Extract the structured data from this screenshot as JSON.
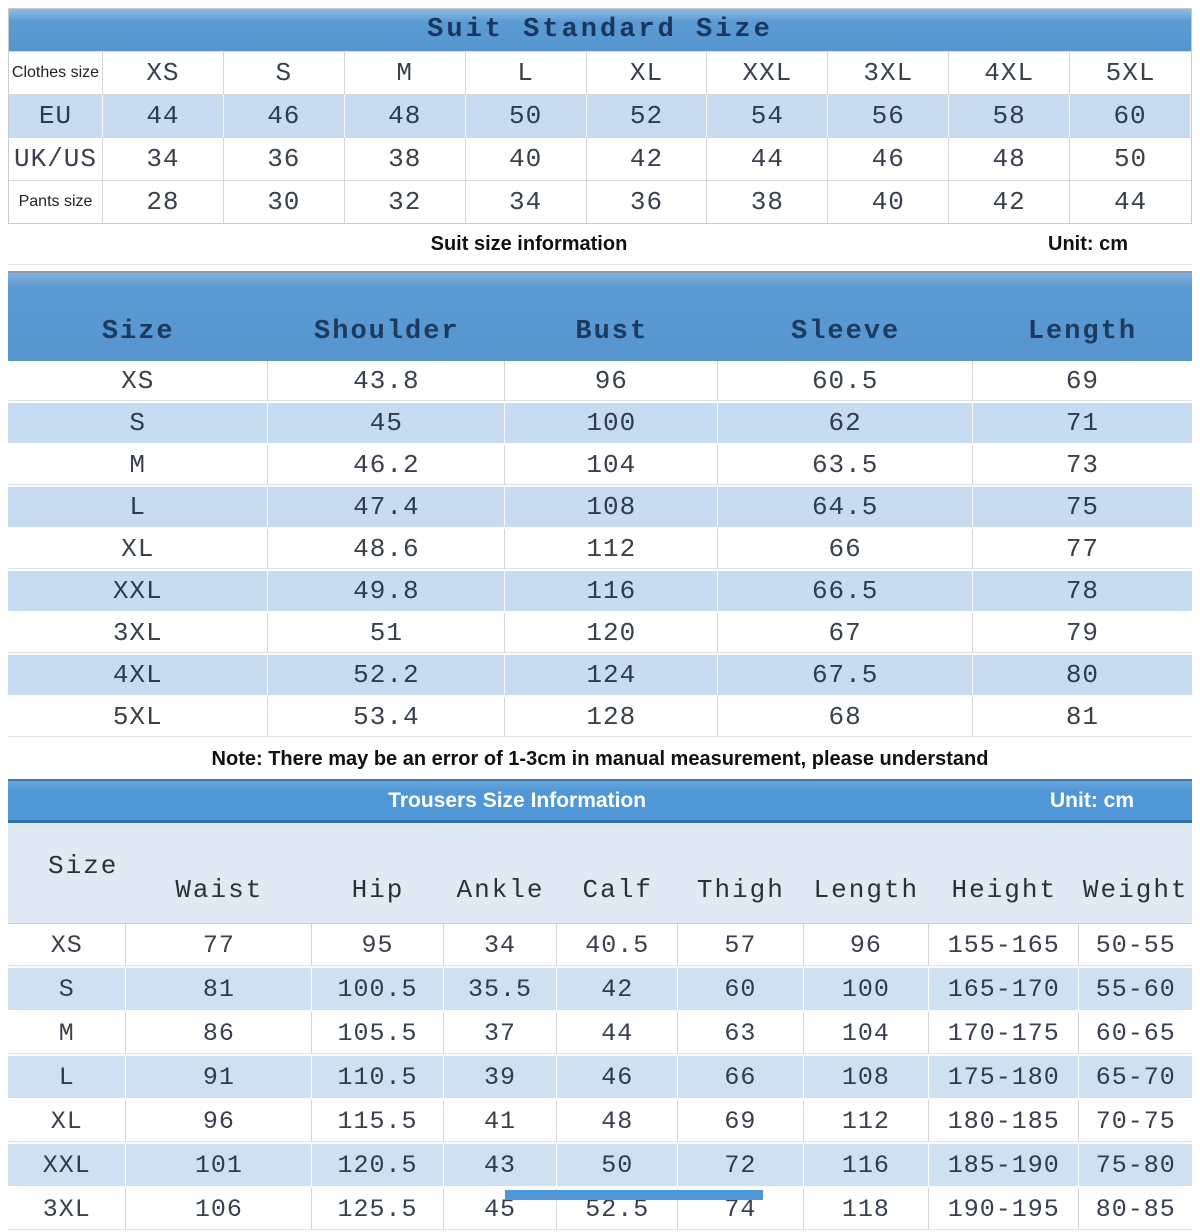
{
  "colors": {
    "header_blue": "#5b9ad3",
    "light_row_blue": "#c7dcf0",
    "trousers_title_blue": "#4f97d7",
    "trousers_header_bg": "#dfeaf5",
    "trousers_alt_row": "#cfe0f1",
    "navy_text": "#17375e",
    "cell_text": "#3a414c"
  },
  "table1": {
    "title": "Suit Standard Size",
    "rows": [
      {
        "label": "Clothes size",
        "label_style": "sans",
        "values": [
          "XS",
          "S",
          "M",
          "L",
          "XL",
          "XXL",
          "3XL",
          "4XL",
          "5XL"
        ]
      },
      {
        "label": "EU",
        "label_style": "mono",
        "values": [
          "44",
          "46",
          "48",
          "50",
          "52",
          "54",
          "56",
          "58",
          "60"
        ]
      },
      {
        "label": "UK/US",
        "label_style": "mono",
        "values": [
          "34",
          "36",
          "38",
          "40",
          "42",
          "44",
          "46",
          "48",
          "50"
        ]
      },
      {
        "label": "Pants size",
        "label_style": "sans",
        "values": [
          "28",
          "30",
          "32",
          "34",
          "36",
          "38",
          "40",
          "42",
          "44"
        ]
      }
    ]
  },
  "suit_info": {
    "title": "Suit size information",
    "unit": "Unit: cm"
  },
  "table2": {
    "headers": [
      "Size",
      "Shoulder",
      "Bust",
      "Sleeve",
      "Length"
    ],
    "rows": [
      [
        "XS",
        "43.8",
        "96",
        "60.5",
        "69"
      ],
      [
        "S",
        "45",
        "100",
        "62",
        "71"
      ],
      [
        "M",
        "46.2",
        "104",
        "63.5",
        "73"
      ],
      [
        "L",
        "47.4",
        "108",
        "64.5",
        "75"
      ],
      [
        "XL",
        "48.6",
        "112",
        "66",
        "77"
      ],
      [
        "XXL",
        "49.8",
        "116",
        "66.5",
        "78"
      ],
      [
        "3XL",
        "51",
        "120",
        "67",
        "79"
      ],
      [
        "4XL",
        "52.2",
        "124",
        "67.5",
        "80"
      ],
      [
        "5XL",
        "53.4",
        "128",
        "68",
        "81"
      ]
    ]
  },
  "note": "Note: There may be an error of 1-3cm in manual measurement, please understand",
  "table3": {
    "title": "Trousers Size Information",
    "unit": "Unit: cm",
    "headers": [
      "Size",
      "Waist",
      "Hip",
      "Ankle",
      "Calf",
      "Thigh",
      "Length",
      "Height",
      "Weight"
    ],
    "rows": [
      [
        "XS",
        "77",
        "95",
        "34",
        "40.5",
        "57",
        "96",
        "155-165",
        "50-55"
      ],
      [
        "S",
        "81",
        "100.5",
        "35.5",
        "42",
        "60",
        "100",
        "165-170",
        "55-60"
      ],
      [
        "M",
        "86",
        "105.5",
        "37",
        "44",
        "63",
        "104",
        "170-175",
        "60-65"
      ],
      [
        "L",
        "91",
        "110.5",
        "39",
        "46",
        "66",
        "108",
        "175-180",
        "65-70"
      ],
      [
        "XL",
        "96",
        "115.5",
        "41",
        "48",
        "69",
        "112",
        "180-185",
        "70-75"
      ],
      [
        "XXL",
        "101",
        "120.5",
        "43",
        "50",
        "72",
        "116",
        "185-190",
        "75-80"
      ],
      [
        "3XL",
        "106",
        "125.5",
        "45",
        "52.5",
        "74",
        "118",
        "190-195",
        "80-85"
      ]
    ]
  }
}
